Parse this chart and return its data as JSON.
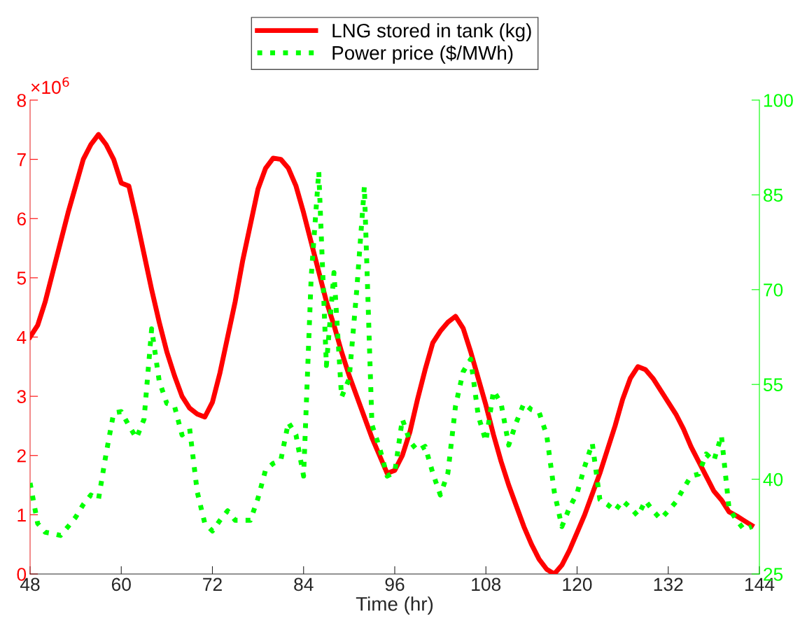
{
  "chart_data": {
    "type": "line",
    "xlabel": "Time (hr)",
    "annotations": [
      "×10$^{6}$"
    ],
    "xlim": [
      48,
      144
    ],
    "xticks": [
      48,
      60,
      72,
      84,
      96,
      108,
      120,
      132,
      144
    ],
    "ylim": [
      0,
      8
    ],
    "yticks": [
      0,
      1,
      2,
      3,
      4,
      5,
      6,
      7,
      8
    ],
    "y2lim": [
      25,
      100
    ],
    "y2ticks": [
      25,
      40,
      55,
      70,
      85,
      100
    ],
    "legend": "top",
    "grid": false,
    "series": [
      {
        "name": "LNG stored in tank (kg)",
        "color": "#ff0000",
        "line_style": "solid",
        "axis": "y",
        "x": [
          48,
          49,
          50,
          51,
          52,
          53,
          54,
          55,
          56,
          57,
          58,
          59,
          60,
          61,
          62,
          63,
          64,
          65,
          66,
          67,
          68,
          69,
          70,
          71,
          72,
          73,
          74,
          75,
          76,
          77,
          78,
          79,
          80,
          81,
          82,
          83,
          84,
          85,
          86,
          87,
          88,
          89,
          90,
          91,
          92,
          93,
          94,
          95,
          96,
          97,
          98,
          99,
          100,
          101,
          102,
          103,
          104,
          105,
          106,
          107,
          108,
          109,
          110,
          111,
          112,
          113,
          114,
          115,
          116,
          117,
          118,
          119,
          120,
          121,
          122,
          123,
          124,
          125,
          126,
          127,
          128,
          129,
          130,
          131,
          132,
          133,
          134,
          135,
          136,
          137,
          138,
          139,
          140,
          141,
          142,
          143
        ],
        "values": [
          4.0,
          4.2,
          4.6,
          5.1,
          5.6,
          6.1,
          6.55,
          7.0,
          7.25,
          7.42,
          7.25,
          7.0,
          6.6,
          6.55,
          6.0,
          5.4,
          4.8,
          4.25,
          3.75,
          3.35,
          3.0,
          2.8,
          2.7,
          2.65,
          2.9,
          3.4,
          4.0,
          4.6,
          5.3,
          5.9,
          6.5,
          6.85,
          7.02,
          7.0,
          6.85,
          6.55,
          6.1,
          5.6,
          5.1,
          4.6,
          4.2,
          3.75,
          3.35,
          3.0,
          2.65,
          2.3,
          2.0,
          1.7,
          1.75,
          2.0,
          2.4,
          2.95,
          3.45,
          3.9,
          4.1,
          4.25,
          4.35,
          4.15,
          3.75,
          3.3,
          2.85,
          2.35,
          1.9,
          1.5,
          1.15,
          0.8,
          0.5,
          0.25,
          0.08,
          0.0,
          0.15,
          0.4,
          0.7,
          1.0,
          1.35,
          1.7,
          2.1,
          2.5,
          2.95,
          3.3,
          3.5,
          3.45,
          3.3,
          3.1,
          2.9,
          2.7,
          2.45,
          2.15,
          1.9,
          1.65,
          1.4,
          1.25,
          1.05,
          0.98,
          0.9,
          0.82
        ]
      },
      {
        "name": "Power price ($/MWh)",
        "color": "#00ff00",
        "line_style": "dotted",
        "axis": "y2",
        "x": [
          48,
          49,
          50,
          51,
          52,
          53,
          54,
          55,
          56,
          57,
          58,
          59,
          60,
          61,
          62,
          63,
          64,
          65,
          66,
          67,
          68,
          69,
          70,
          71,
          72,
          73,
          74,
          75,
          76,
          77,
          78,
          79,
          80,
          81,
          82,
          83,
          84,
          85,
          86,
          87,
          88,
          89,
          90,
          91,
          92,
          93,
          94,
          95,
          96,
          97,
          98,
          99,
          100,
          101,
          102,
          103,
          104,
          105,
          106,
          107,
          108,
          109,
          110,
          111,
          112,
          113,
          114,
          115,
          116,
          117,
          118,
          119,
          120,
          121,
          122,
          123,
          124,
          125,
          126,
          127,
          128,
          129,
          130,
          131,
          132,
          133,
          134,
          135,
          136,
          137,
          138,
          139,
          140,
          141,
          142,
          143
        ],
        "values": [
          39.4,
          33,
          31.6,
          31.4,
          31.1,
          32.5,
          34,
          36,
          37.5,
          36.8,
          44,
          50.5,
          50.7,
          48.5,
          46.5,
          49.5,
          63.8,
          55.5,
          52,
          51.6,
          47,
          48,
          38,
          33,
          31.8,
          33.5,
          35,
          33.5,
          33.5,
          33.5,
          37,
          41.5,
          42.5,
          43,
          49,
          47,
          40.5,
          72,
          88.7,
          58,
          72.7,
          53,
          55.9,
          70,
          86.3,
          48.6,
          45,
          40.5,
          41.1,
          49.5,
          46,
          44.5,
          45.2,
          41,
          37.5,
          41,
          51.6,
          57,
          59,
          50,
          46,
          54,
          52,
          45.4,
          49,
          52,
          51,
          50.6,
          47,
          38,
          32.5,
          35.5,
          37.8,
          42,
          45.7,
          36.8,
          36,
          35,
          36.6,
          35.5,
          34.2,
          36.6,
          35,
          33.7,
          35,
          36.4,
          38.5,
          40.5,
          40.8,
          44,
          42.9,
          46.9,
          35.4,
          33.5,
          32,
          32.5
        ]
      }
    ]
  }
}
